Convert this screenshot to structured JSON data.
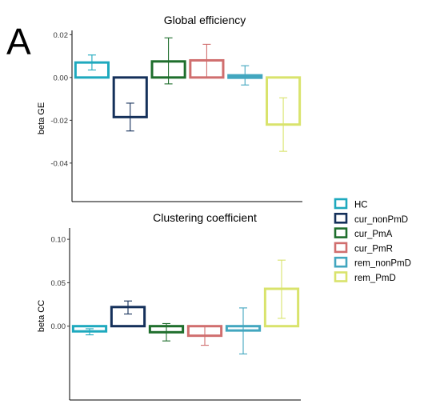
{
  "panel_label": "A",
  "chart_data": [
    {
      "type": "bar",
      "title": "Global efficiency",
      "xlabel": "",
      "ylabel": "beta GE",
      "ylim": [
        -0.058,
        0.022
      ],
      "yticks": [
        0.02,
        0.0,
        -0.02,
        -0.04
      ],
      "ytick_labels": [
        "0.02",
        "0.00",
        "-0.02",
        "-0.04"
      ],
      "categories": [
        "HC",
        "cur_nonPmD",
        "cur_PmA",
        "cur_PmR",
        "rem_nonPmD",
        "rem_PmD"
      ],
      "values": [
        0.007,
        -0.0185,
        0.0075,
        0.008,
        0.001,
        -0.022
      ],
      "err_low": [
        0.0035,
        -0.025,
        -0.003,
        0.0,
        -0.0035,
        -0.0345
      ],
      "err_high": [
        0.0105,
        -0.012,
        0.0185,
        0.0155,
        0.0055,
        -0.0095
      ],
      "grid": false
    },
    {
      "type": "bar",
      "title": "Clustering coefficient",
      "xlabel": "",
      "ylabel": "beta CC",
      "ylim": [
        -0.085,
        0.113
      ],
      "yticks": [
        0.1,
        0.05,
        0.0
      ],
      "ytick_labels": [
        "0.10",
        "0.05",
        "0.00"
      ],
      "categories": [
        "HC",
        "cur_nonPmD",
        "cur_PmA",
        "cur_PmR",
        "rem_nonPmD",
        "rem_PmD"
      ],
      "values": [
        -0.006,
        0.022,
        -0.007,
        -0.011,
        -0.005,
        0.043
      ],
      "err_low": [
        -0.01,
        0.014,
        -0.017,
        -0.022,
        -0.032,
        0.009
      ],
      "err_high": [
        -0.003,
        0.029,
        0.003,
        0.0,
        0.021,
        0.076
      ],
      "grid": false
    }
  ],
  "legend": {
    "position": "right",
    "items": [
      {
        "label": "HC",
        "color": "#1ea9be"
      },
      {
        "label": "cur_nonPmD",
        "color": "#14305a"
      },
      {
        "label": "cur_PmA",
        "color": "#1e6e2c"
      },
      {
        "label": "cur_PmR",
        "color": "#d06e6e"
      },
      {
        "label": "rem_nonPmD",
        "color": "#42a6bf"
      },
      {
        "label": "rem_PmD",
        "color": "#d9e36c"
      }
    ]
  }
}
